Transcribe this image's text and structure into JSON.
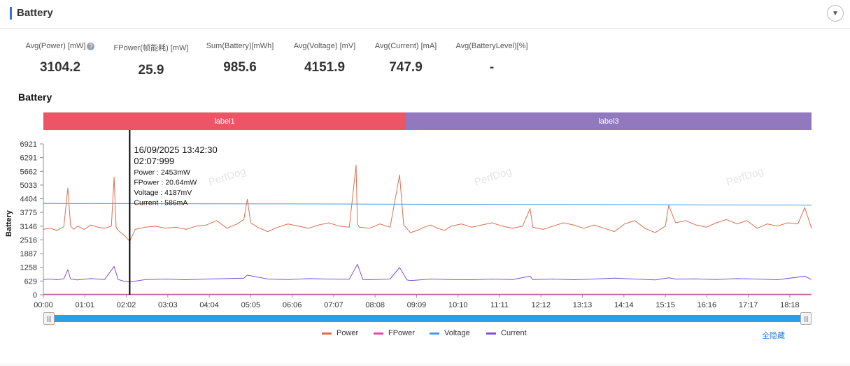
{
  "header": {
    "title": "Battery"
  },
  "stats": [
    {
      "label": "Avg(Power) [mW]",
      "value": "3104.2",
      "help": "?"
    },
    {
      "label": "FPower(帧能耗) [mW]",
      "value": "25.9"
    },
    {
      "label": "Sum(Battery)[mWh]",
      "value": "985.6"
    },
    {
      "label": "Avg(Voltage) [mV]",
      "value": "4151.9"
    },
    {
      "label": "Avg(Current) [mA]",
      "value": "747.9"
    },
    {
      "label": "Avg(BatteryLevel)[%]",
      "value": "-"
    }
  ],
  "section_title": "Battery",
  "labels": [
    {
      "name": "label1",
      "color": "#ec5566"
    },
    {
      "name": "label3",
      "color": "#9279bf"
    }
  ],
  "tooltip": {
    "datetime": "16/09/2025 13:42:30",
    "time": "02:07:999",
    "lines": [
      "Power   : 2453mW",
      "FPower : 20.64mW",
      "Voltage : 4187mV",
      "Current : 586mA"
    ]
  },
  "watermark": "PerfDog",
  "legend": {
    "hide_all": "全隐藏"
  },
  "colors": {
    "Power": "#e06d50",
    "FPower": "#e04da6",
    "Voltage": "#4d9ae8",
    "Current": "#7f4fd6"
  },
  "chart_data": {
    "type": "line",
    "ylabel": "Battery",
    "y_ticks": [
      0,
      629,
      1258,
      1887,
      2516,
      3146,
      3775,
      4404,
      5033,
      5662,
      6291,
      6921
    ],
    "ylim": [
      0,
      6921
    ],
    "x_ticks": [
      "00:00",
      "01:01",
      "02:02",
      "03:03",
      "04:04",
      "05:05",
      "06:06",
      "07:07",
      "08:08",
      "09:09",
      "10:10",
      "11:11",
      "12:12",
      "13:13",
      "14:14",
      "15:15",
      "16:16",
      "17:17",
      "18:18"
    ],
    "xlim_seconds": [
      0,
      1130
    ],
    "labels": [
      {
        "name": "label1",
        "start": "00:00",
        "end": "08:51"
      },
      {
        "name": "label3",
        "start": "08:51",
        "end": "18:50"
      }
    ],
    "cursor": {
      "x": "02:07",
      "Power": 2453,
      "FPower": 20.64,
      "Voltage": 4187,
      "Current": 586
    },
    "series": [
      {
        "name": "Power",
        "color": "#e06d50",
        "x": [
          "00:00",
          "00:10",
          "00:20",
          "00:30",
          "00:36",
          "00:40",
          "00:45",
          "00:50",
          "01:00",
          "01:10",
          "01:20",
          "01:30",
          "01:40",
          "01:44",
          "01:47",
          "01:50",
          "02:00",
          "02:07",
          "02:15",
          "02:30",
          "02:45",
          "03:00",
          "03:15",
          "03:30",
          "03:45",
          "04:00",
          "04:15",
          "04:30",
          "04:45",
          "04:55",
          "05:00",
          "05:05",
          "05:15",
          "05:30",
          "05:45",
          "06:00",
          "06:15",
          "06:30",
          "06:45",
          "07:00",
          "07:15",
          "07:30",
          "07:40",
          "07:42",
          "07:45",
          "08:00",
          "08:15",
          "08:30",
          "08:44",
          "08:50",
          "09:00",
          "09:10",
          "09:20",
          "09:30",
          "09:40",
          "09:50",
          "10:00",
          "10:15",
          "10:30",
          "10:45",
          "11:00",
          "11:15",
          "11:30",
          "11:45",
          "11:56",
          "12:00",
          "12:15",
          "12:30",
          "12:45",
          "13:00",
          "13:15",
          "13:30",
          "13:45",
          "14:00",
          "14:15",
          "14:30",
          "14:45",
          "15:00",
          "15:15",
          "15:20",
          "15:30",
          "15:45",
          "16:00",
          "16:15",
          "16:30",
          "16:45",
          "17:00",
          "17:15",
          "17:30",
          "17:45",
          "18:00",
          "18:15",
          "18:30",
          "18:40",
          "18:50"
        ],
        "values": [
          3000,
          3050,
          2950,
          3120,
          4900,
          3150,
          3000,
          3150,
          3000,
          3200,
          3100,
          3050,
          3150,
          5400,
          3100,
          2950,
          2700,
          2453,
          3000,
          3100,
          3150,
          3050,
          3100,
          3000,
          3150,
          3200,
          3400,
          3050,
          3250,
          3450,
          4380,
          3300,
          3100,
          2900,
          3100,
          3250,
          3150,
          3050,
          3200,
          3300,
          3150,
          3100,
          5950,
          3250,
          3100,
          3050,
          3250,
          3100,
          5500,
          3200,
          2850,
          2950,
          3100,
          3200,
          3050,
          2950,
          3150,
          3250,
          3100,
          3200,
          3300,
          3150,
          3050,
          3150,
          3950,
          3100,
          3000,
          3150,
          3300,
          3200,
          3050,
          3200,
          3050,
          2900,
          3250,
          3400,
          3050,
          2850,
          3150,
          4100,
          3300,
          3400,
          3200,
          3100,
          3300,
          3450,
          3250,
          3400,
          3050,
          3250,
          3150,
          3300,
          3250,
          4000,
          3050
        ]
      },
      {
        "name": "FPower",
        "color": "#e04da6",
        "x": [
          "00:00",
          "18:50"
        ],
        "values": [
          26,
          26
        ]
      },
      {
        "name": "Voltage",
        "color": "#4d9ae8",
        "x": [
          "00:00",
          "02:00",
          "04:00",
          "06:00",
          "08:00",
          "10:00",
          "12:00",
          "14:00",
          "16:00",
          "18:50"
        ],
        "values": [
          4190,
          4185,
          4175,
          4170,
          4160,
          4150,
          4140,
          4135,
          4125,
          4110
        ]
      },
      {
        "name": "Current",
        "color": "#7f4fd6",
        "x": [
          "00:00",
          "00:10",
          "00:20",
          "00:30",
          "00:36",
          "00:40",
          "00:50",
          "01:00",
          "01:10",
          "01:20",
          "01:30",
          "01:44",
          "01:50",
          "02:00",
          "02:07",
          "02:30",
          "03:00",
          "03:30",
          "04:00",
          "04:30",
          "04:55",
          "05:00",
          "05:30",
          "06:00",
          "06:30",
          "07:00",
          "07:30",
          "07:42",
          "07:50",
          "08:00",
          "08:30",
          "08:44",
          "08:55",
          "09:00",
          "09:30",
          "10:00",
          "10:30",
          "11:00",
          "11:30",
          "11:56",
          "12:00",
          "12:30",
          "13:00",
          "13:30",
          "14:00",
          "14:30",
          "15:00",
          "15:20",
          "15:30",
          "16:00",
          "16:30",
          "17:00",
          "17:30",
          "18:00",
          "18:40",
          "18:50"
        ],
        "values": [
          700,
          720,
          690,
          730,
          1150,
          720,
          680,
          710,
          740,
          720,
          700,
          1300,
          700,
          610,
          586,
          700,
          720,
          690,
          720,
          740,
          760,
          900,
          720,
          700,
          740,
          720,
          710,
          1400,
          700,
          690,
          720,
          1250,
          680,
          650,
          720,
          700,
          690,
          720,
          700,
          850,
          700,
          720,
          690,
          720,
          760,
          720,
          680,
          780,
          720,
          730,
          700,
          740,
          720,
          690,
          850,
          700
        ]
      }
    ]
  }
}
